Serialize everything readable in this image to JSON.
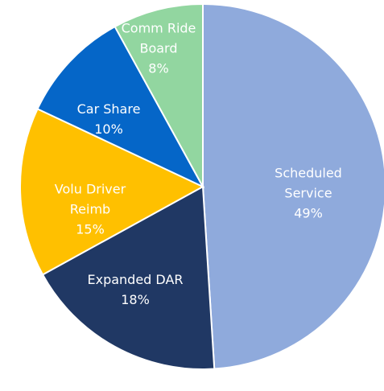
{
  "chart_data": {
    "type": "pie",
    "categories": [
      "Scheduled Service",
      "Expanded DAR",
      "Volu Driver Reimb",
      "Car Share",
      "Comm Ride Board"
    ],
    "values": [
      49,
      18,
      15,
      10,
      8
    ],
    "value_labels": [
      "49%",
      "18%",
      "15%",
      "10%",
      "8%"
    ],
    "colors": [
      "#8faadc",
      "#203864",
      "#ffc000",
      "#0566c8",
      "#92d6a0"
    ]
  }
}
